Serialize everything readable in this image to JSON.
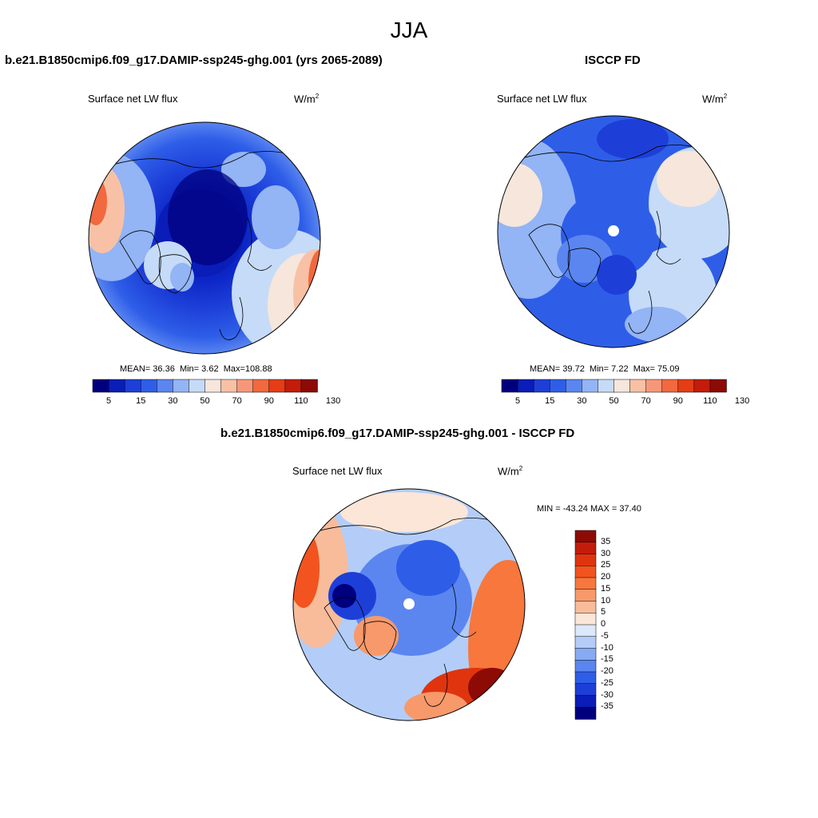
{
  "title": "JJA",
  "variable": "Surface net LW flux",
  "units_base": "W/m",
  "units_exp": "2",
  "panels": [
    {
      "id": "model",
      "title": "b.e21.B1850cmip6.f09_g17.DAMIP-ssp245-ghg.001 (yrs 2065-2089)",
      "stats_mean_label": "MEAN=",
      "stats_mean": "36.36",
      "stats_min_label": "Min=",
      "stats_min": "3.62",
      "stats_max_label": "Max=",
      "stats_max": "108.88"
    },
    {
      "id": "obs",
      "title": "ISCCP FD",
      "stats_mean_label": "MEAN=",
      "stats_mean": "39.72",
      "stats_min_label": "Min=",
      "stats_min": "7.22",
      "stats_max_label": "Max=",
      "stats_max": "75.09"
    }
  ],
  "diff_panel": {
    "title": "b.e21.B1850cmip6.f09_g17.DAMIP-ssp245-ghg.001 - ISCCP FD",
    "minmax": "MIN = -43.24 MAX =  37.40"
  },
  "colorbar_abs": {
    "tick_labels": [
      "5",
      "15",
      "30",
      "50",
      "70",
      "90",
      "110",
      "130"
    ],
    "colors": [
      "#00007f",
      "#0a1db8",
      "#1d3fd8",
      "#2e5ee8",
      "#5b86f0",
      "#93b4f5",
      "#c6dbf8",
      "#f6e6db",
      "#f8c1a6",
      "#f7977a",
      "#f2683f",
      "#e53d16",
      "#c41c0b",
      "#8c0b04"
    ]
  },
  "colorbar_diff": {
    "tick_labels": [
      "35",
      "30",
      "25",
      "20",
      "15",
      "10",
      "5",
      "0",
      "-5",
      "-10",
      "-15",
      "-20",
      "-25",
      "-30",
      "-35"
    ],
    "colors": [
      "#8c0b04",
      "#c41c0b",
      "#e0340e",
      "#f2531f",
      "#f7773d",
      "#f8996b",
      "#f8bc9b",
      "#fbe6d8",
      "#dce8fb",
      "#b3cdf8",
      "#86abf3",
      "#5b86f0",
      "#2e5ee8",
      "#1d3fd8",
      "#0a1db8",
      "#00007f"
    ]
  },
  "icons": [
    "model-polar-map-icon",
    "obs-polar-map-icon",
    "difference-polar-map-icon"
  ]
}
